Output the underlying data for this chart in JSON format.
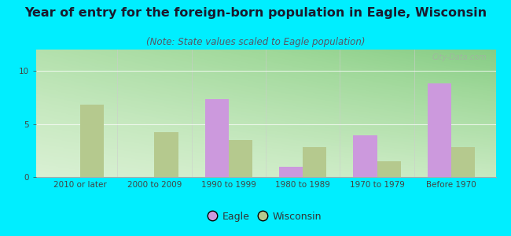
{
  "title": "Year of entry for the foreign-born population in Eagle, Wisconsin",
  "subtitle": "(Note: State values scaled to Eagle population)",
  "categories": [
    "2010 or later",
    "2000 to 2009",
    "1990 to 1999",
    "1980 to 1989",
    "1970 to 1979",
    "Before 1970"
  ],
  "eagle_values": [
    0,
    0,
    7.3,
    1.0,
    3.9,
    8.8
  ],
  "wisconsin_values": [
    6.8,
    4.2,
    3.5,
    2.8,
    1.5,
    2.8
  ],
  "eagle_color": "#cc99dd",
  "wisconsin_color": "#b5c98e",
  "background_outer": "#00eeff",
  "ylim": [
    0,
    12
  ],
  "yticks": [
    0,
    5,
    10
  ],
  "bar_width": 0.32,
  "legend_labels": [
    "Eagle",
    "Wisconsin"
  ],
  "title_fontsize": 11.5,
  "subtitle_fontsize": 8.5,
  "tick_fontsize": 7.5,
  "legend_fontsize": 9
}
